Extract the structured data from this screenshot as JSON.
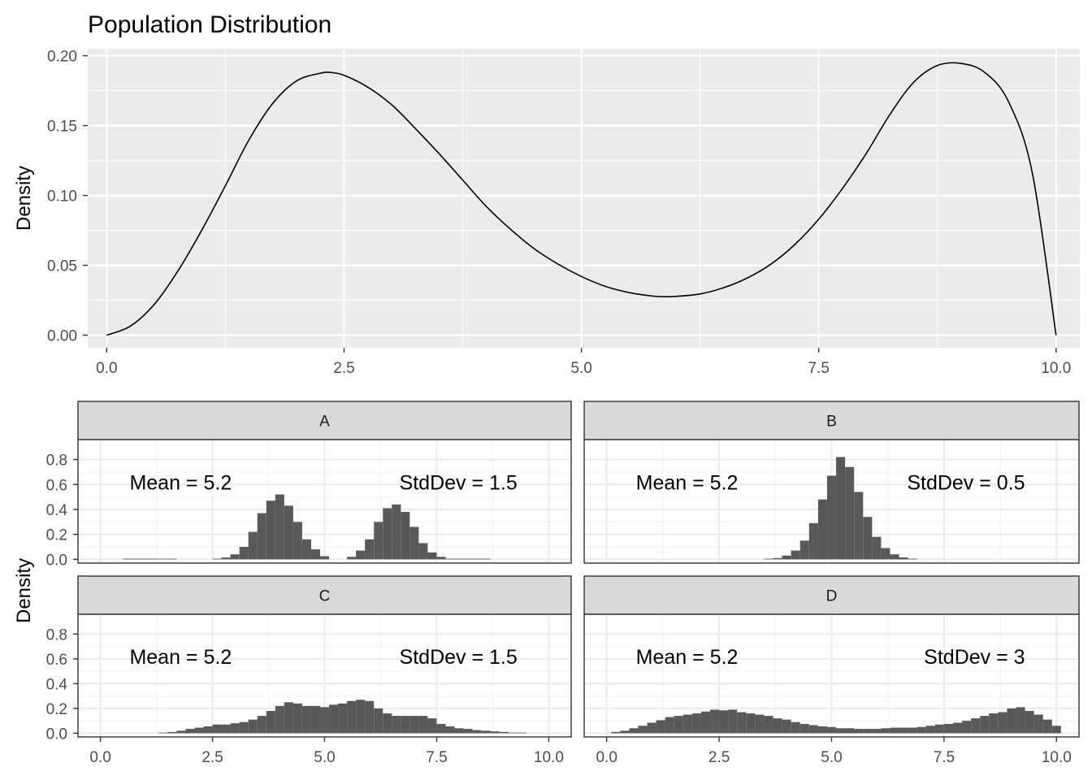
{
  "chart_data": [
    {
      "type": "line",
      "title": "Population Distribution",
      "xlabel": "",
      "ylabel": "Density",
      "xlim": [
        -0.2,
        10.25
      ],
      "ylim": [
        -0.009,
        0.205
      ],
      "x_ticks": [
        "0.0",
        "2.5",
        "5.0",
        "7.5",
        "10.0"
      ],
      "x_tick_values": [
        0,
        2.5,
        5,
        7.5,
        10
      ],
      "y_ticks": [
        "0.00",
        "0.05",
        "0.10",
        "0.15",
        "0.20"
      ],
      "y_tick_values": [
        0,
        0.05,
        0.1,
        0.15,
        0.2
      ],
      "grid": true,
      "series": [
        {
          "x": [
            0,
            0.25,
            0.5,
            0.75,
            1.0,
            1.25,
            1.5,
            1.75,
            2.0,
            2.25,
            2.36,
            2.5,
            2.75,
            3.0,
            3.25,
            3.5,
            3.75,
            4.0,
            4.25,
            4.5,
            4.75,
            5.0,
            5.25,
            5.5,
            5.75,
            5.9,
            6.0,
            6.25,
            6.5,
            6.75,
            7.0,
            7.25,
            7.5,
            7.75,
            8.0,
            8.25,
            8.5,
            8.75,
            9.0,
            9.25,
            9.5,
            9.75,
            10.0
          ],
          "y": [
            0.0,
            0.0065,
            0.022,
            0.046,
            0.075,
            0.107,
            0.14,
            0.166,
            0.182,
            0.1875,
            0.188,
            0.186,
            0.1775,
            0.165,
            0.148,
            0.13,
            0.111,
            0.092,
            0.076,
            0.062,
            0.051,
            0.042,
            0.035,
            0.0305,
            0.028,
            0.0275,
            0.0278,
            0.0295,
            0.034,
            0.041,
            0.051,
            0.065,
            0.083,
            0.105,
            0.13,
            0.158,
            0.181,
            0.193,
            0.1945,
            0.188,
            0.167,
            0.116,
            0.0
          ]
        }
      ]
    },
    {
      "type": "bar",
      "title": "",
      "ylabel": "Density",
      "xlabel": "",
      "xlim": [
        -0.5,
        10.5
      ],
      "ylim": [
        -0.03,
        0.96
      ],
      "x_ticks": [
        "0.0",
        "2.5",
        "5.0",
        "7.5",
        "10.0"
      ],
      "x_tick_values": [
        0,
        2.5,
        5,
        7.5,
        10
      ],
      "y_ticks": [
        "0.0",
        "0.2",
        "0.4",
        "0.6",
        "0.8"
      ],
      "y_tick_values": [
        0,
        0.2,
        0.4,
        0.6,
        0.8
      ],
      "bin_width": 0.2,
      "grid": true,
      "panels": [
        {
          "name": "A",
          "mean_label": "Mean = 5.2",
          "sd_label": "StdDev = 1.5",
          "bin_starts": [
            0.5,
            0.7,
            0.9,
            1.1,
            1.3,
            1.5,
            1.7,
            1.9,
            2.1,
            2.3,
            2.5,
            2.7,
            2.9,
            3.1,
            3.3,
            3.5,
            3.7,
            3.9,
            4.1,
            4.3,
            4.5,
            4.7,
            4.9,
            5.1,
            5.3,
            5.5,
            5.7,
            5.9,
            6.1,
            6.3,
            6.5,
            6.7,
            6.9,
            7.1,
            7.3,
            7.5,
            7.7,
            7.9,
            8.1,
            8.3,
            8.5,
            8.7,
            8.9
          ],
          "values": [
            0.005,
            0.005,
            0.005,
            0.005,
            0.005,
            0.005,
            0.0,
            0.0,
            0.0,
            0.0,
            0.005,
            0.015,
            0.04,
            0.1,
            0.22,
            0.37,
            0.47,
            0.52,
            0.43,
            0.3,
            0.16,
            0.08,
            0.025,
            0.0,
            0.0,
            0.02,
            0.07,
            0.16,
            0.3,
            0.41,
            0.44,
            0.38,
            0.26,
            0.13,
            0.055,
            0.02,
            0.005,
            0.005,
            0.005,
            0.005,
            0.005,
            0.0,
            0.0
          ]
        },
        {
          "name": "B",
          "mean_label": "Mean = 5.2",
          "sd_label": "StdDev = 0.5",
          "bin_starts": [
            3.5,
            3.7,
            3.9,
            4.1,
            4.3,
            4.5,
            4.7,
            4.9,
            5.1,
            5.3,
            5.5,
            5.7,
            5.9,
            6.1,
            6.3,
            6.5,
            6.7
          ],
          "values": [
            0.005,
            0.01,
            0.03,
            0.07,
            0.15,
            0.29,
            0.48,
            0.67,
            0.82,
            0.74,
            0.54,
            0.34,
            0.18,
            0.09,
            0.04,
            0.015,
            0.005
          ]
        },
        {
          "name": "C",
          "mean_label": "Mean = 5.2",
          "sd_label": "StdDev = 1.5",
          "bin_starts": [
            1.3,
            1.5,
            1.7,
            1.9,
            2.1,
            2.3,
            2.5,
            2.7,
            2.9,
            3.1,
            3.3,
            3.5,
            3.7,
            3.9,
            4.1,
            4.3,
            4.5,
            4.7,
            4.9,
            5.1,
            5.3,
            5.5,
            5.7,
            5.9,
            6.1,
            6.3,
            6.5,
            6.7,
            6.9,
            7.1,
            7.3,
            7.5,
            7.7,
            7.9,
            8.1,
            8.3,
            8.5,
            8.7,
            8.9,
            9.1,
            9.3
          ],
          "values": [
            0.005,
            0.01,
            0.02,
            0.035,
            0.045,
            0.055,
            0.07,
            0.07,
            0.08,
            0.09,
            0.11,
            0.14,
            0.18,
            0.22,
            0.25,
            0.24,
            0.22,
            0.22,
            0.21,
            0.23,
            0.24,
            0.26,
            0.27,
            0.26,
            0.2,
            0.16,
            0.14,
            0.14,
            0.14,
            0.14,
            0.12,
            0.075,
            0.055,
            0.04,
            0.035,
            0.025,
            0.02,
            0.015,
            0.01,
            0.005,
            0.005
          ]
        },
        {
          "name": "D",
          "mean_label": "Mean = 5.2",
          "sd_label": "StdDev = 3",
          "bin_starts": [
            0.1,
            0.3,
            0.5,
            0.7,
            0.9,
            1.1,
            1.3,
            1.5,
            1.7,
            1.9,
            2.1,
            2.3,
            2.5,
            2.7,
            2.9,
            3.1,
            3.3,
            3.5,
            3.7,
            3.9,
            4.1,
            4.3,
            4.5,
            4.7,
            4.9,
            5.1,
            5.3,
            5.5,
            5.7,
            5.9,
            6.1,
            6.3,
            6.5,
            6.7,
            6.9,
            7.1,
            7.3,
            7.5,
            7.7,
            7.9,
            8.1,
            8.3,
            8.5,
            8.7,
            8.9,
            9.1,
            9.3,
            9.5,
            9.7,
            9.9
          ],
          "values": [
            0.01,
            0.02,
            0.04,
            0.06,
            0.085,
            0.105,
            0.13,
            0.14,
            0.15,
            0.16,
            0.175,
            0.19,
            0.185,
            0.19,
            0.17,
            0.16,
            0.15,
            0.14,
            0.12,
            0.11,
            0.09,
            0.075,
            0.065,
            0.055,
            0.05,
            0.04,
            0.04,
            0.035,
            0.035,
            0.035,
            0.04,
            0.045,
            0.045,
            0.045,
            0.05,
            0.06,
            0.07,
            0.075,
            0.085,
            0.1,
            0.12,
            0.14,
            0.16,
            0.17,
            0.2,
            0.21,
            0.18,
            0.15,
            0.11,
            0.06
          ]
        }
      ]
    }
  ]
}
